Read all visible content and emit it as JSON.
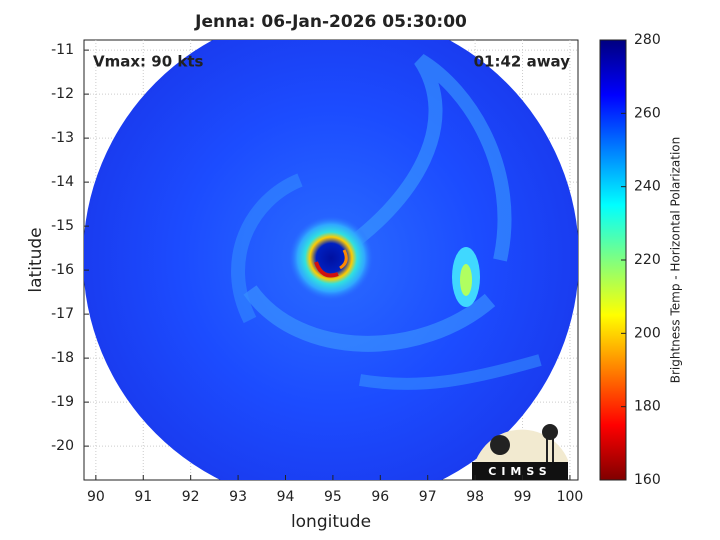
{
  "chart_data": {
    "type": "image",
    "title": "Jenna: 06-Jan-2026 05:30:00",
    "annotations": [
      "Vmax: 90 kts",
      "01:42 away"
    ],
    "x_label": "longitude",
    "y_label": "latitude",
    "xlim": [
      89.75,
      100.17
    ],
    "xticks": [
      90,
      91,
      92,
      93,
      94,
      95,
      96,
      97,
      98,
      99,
      100
    ],
    "ylim": [
      -20.77,
      -10.77
    ],
    "yticks": [
      -20,
      -19,
      -18,
      -17,
      -16,
      -15,
      -14,
      -13,
      -12,
      -11
    ],
    "grid": true,
    "colorbar": {
      "label": "Brightness Temp - Horizontal Polarization",
      "clim": [
        160,
        280
      ],
      "ticks": [
        160,
        180,
        200,
        220,
        240,
        260,
        280
      ],
      "colormap": "jet",
      "reverse": true
    },
    "logo": "CIMSS"
  }
}
